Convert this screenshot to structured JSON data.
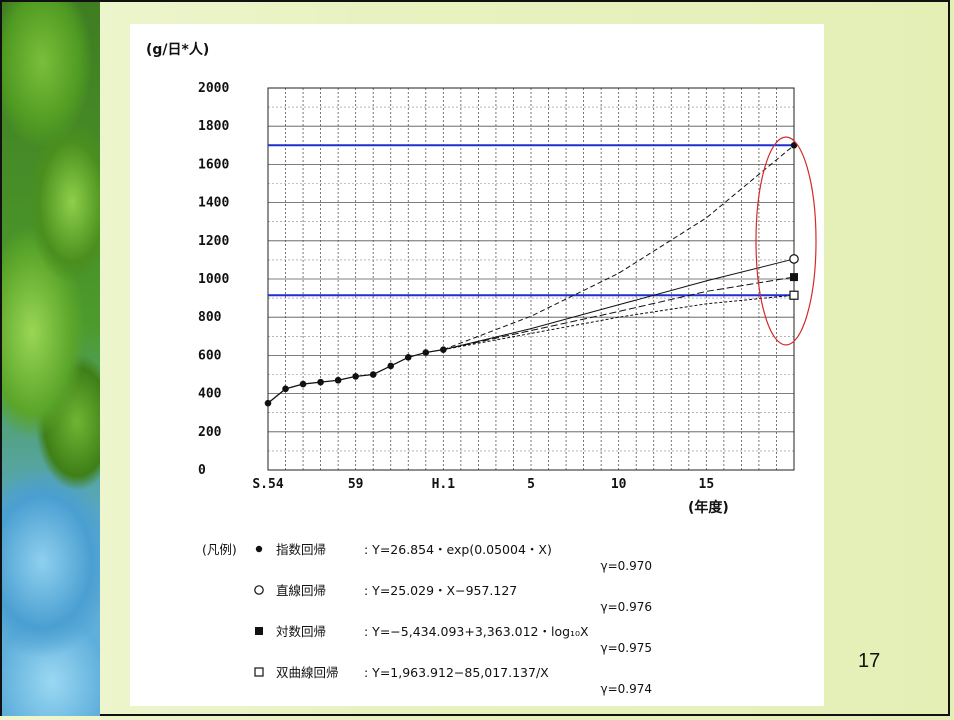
{
  "page_number": "17",
  "chart_data": {
    "type": "line",
    "ylabel": "(g/日*人)",
    "xlabel": "(年度)",
    "ylim": [
      0,
      2000
    ],
    "y_ticks": [
      0,
      200,
      400,
      600,
      800,
      1000,
      1200,
      1400,
      1600,
      1800,
      2000
    ],
    "y_tick_labels": [
      "0",
      "200",
      "400",
      "600",
      "800",
      "1000",
      "1200",
      "1400",
      "1600",
      "1800",
      "2000"
    ],
    "x_ticks": [
      0,
      5,
      10,
      15,
      20,
      25
    ],
    "x_tick_labels": [
      "S.54",
      "59",
      "H.1",
      "5",
      "10",
      "15"
    ],
    "xlim": [
      0,
      30
    ],
    "grid": true,
    "observed": {
      "x": [
        0,
        1,
        2,
        3,
        4,
        5,
        6,
        7,
        8,
        9,
        10
      ],
      "y": [
        350,
        425,
        450,
        460,
        470,
        490,
        500,
        545,
        590,
        615,
        630
      ]
    },
    "series": [
      {
        "name": "指数回帰",
        "marker": "filled-circle",
        "x": [
          10,
          15,
          20,
          25,
          30
        ],
        "y": [
          630,
          805,
          1030,
          1320,
          1700
        ]
      },
      {
        "name": "直線回帰",
        "marker": "open-circle",
        "x": [
          10,
          15,
          20,
          25,
          30
        ],
        "y": [
          630,
          740,
          865,
          990,
          1105
        ]
      },
      {
        "name": "対数回帰",
        "marker": "filled-square",
        "x": [
          10,
          15,
          20,
          25,
          30
        ],
        "y": [
          630,
          730,
          830,
          935,
          1010
        ]
      },
      {
        "name": "双曲線回帰",
        "marker": "open-square",
        "x": [
          10,
          15,
          20,
          25,
          30
        ],
        "y": [
          630,
          715,
          800,
          870,
          915
        ]
      }
    ],
    "reference_lines": [
      {
        "y": 1700,
        "color": "#1f2fd0"
      },
      {
        "y": 915,
        "color": "#1f2fd0"
      }
    ],
    "highlight_color": "#d42a2a"
  },
  "legend": {
    "heading": "(凡例)",
    "entries": [
      {
        "marker": "filled-circle",
        "name": "指数回帰",
        "equation": ": Y=26.854・exp(0.05004・X)",
        "gamma": "γ=0.970"
      },
      {
        "marker": "open-circle",
        "name": "直線回帰",
        "equation": ": Y=25.029・X−957.127",
        "gamma": "γ=0.976"
      },
      {
        "marker": "filled-square",
        "name": "対数回帰",
        "equation": ": Y=−5,434.093+3,363.012・log₁₀X",
        "gamma": "γ=0.975"
      },
      {
        "marker": "open-square",
        "name": "双曲線回帰",
        "equation": ": Y=1,963.912−85,017.137/X",
        "gamma": "γ=0.974"
      }
    ]
  }
}
